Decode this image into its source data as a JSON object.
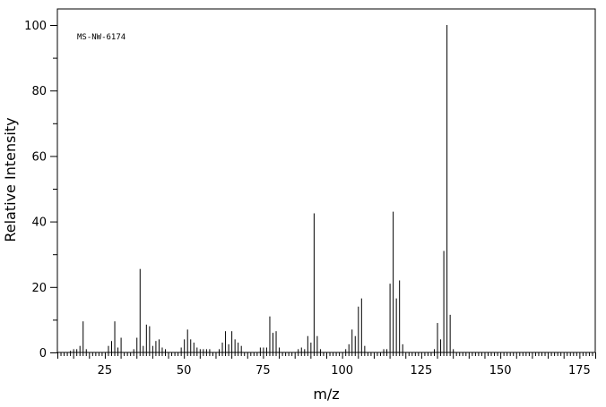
{
  "chart_data": {
    "type": "bar",
    "annotation": "MS-NW-6174",
    "xlabel": "m/z",
    "ylabel": "Relative Intensity",
    "xlim": [
      10,
      180
    ],
    "ylim": [
      0,
      100
    ],
    "x_ticks": [
      25,
      50,
      75,
      100,
      125,
      150,
      175
    ],
    "y_ticks": [
      0,
      20,
      40,
      60,
      80,
      100
    ],
    "x_minor_step": 1,
    "y_minor_step": 10,
    "grid": false,
    "bar_color": "#000000",
    "peaks": [
      {
        "x": 14,
        "y": 0.5
      },
      {
        "x": 15,
        "y": 1.0
      },
      {
        "x": 16,
        "y": 1.0
      },
      {
        "x": 17,
        "y": 2.0
      },
      {
        "x": 18,
        "y": 9.5
      },
      {
        "x": 19,
        "y": 1.0
      },
      {
        "x": 26,
        "y": 2.0
      },
      {
        "x": 27,
        "y": 3.5
      },
      {
        "x": 28,
        "y": 9.5
      },
      {
        "x": 29,
        "y": 1.5
      },
      {
        "x": 30,
        "y": 4.5
      },
      {
        "x": 34,
        "y": 1.0
      },
      {
        "x": 35,
        "y": 4.5
      },
      {
        "x": 36,
        "y": 25.5
      },
      {
        "x": 37,
        "y": 2.0
      },
      {
        "x": 38,
        "y": 8.5
      },
      {
        "x": 39,
        "y": 8.0
      },
      {
        "x": 40,
        "y": 2.0
      },
      {
        "x": 41,
        "y": 3.5
      },
      {
        "x": 42,
        "y": 4.0
      },
      {
        "x": 43,
        "y": 1.5
      },
      {
        "x": 44,
        "y": 1.0
      },
      {
        "x": 49,
        "y": 1.5
      },
      {
        "x": 50,
        "y": 4.0
      },
      {
        "x": 51,
        "y": 7.0
      },
      {
        "x": 52,
        "y": 4.0
      },
      {
        "x": 53,
        "y": 3.0
      },
      {
        "x": 54,
        "y": 1.5
      },
      {
        "x": 55,
        "y": 1.0
      },
      {
        "x": 56,
        "y": 1.0
      },
      {
        "x": 57,
        "y": 1.0
      },
      {
        "x": 58,
        "y": 1.0
      },
      {
        "x": 61,
        "y": 1.0
      },
      {
        "x": 62,
        "y": 3.0
      },
      {
        "x": 63,
        "y": 6.5
      },
      {
        "x": 64,
        "y": 2.5
      },
      {
        "x": 65,
        "y": 6.5
      },
      {
        "x": 66,
        "y": 4.0
      },
      {
        "x": 67,
        "y": 3.0
      },
      {
        "x": 68,
        "y": 2.0
      },
      {
        "x": 74,
        "y": 1.5
      },
      {
        "x": 75,
        "y": 1.5
      },
      {
        "x": 76,
        "y": 1.5
      },
      {
        "x": 77,
        "y": 11.0
      },
      {
        "x": 78,
        "y": 6.0
      },
      {
        "x": 79,
        "y": 6.5
      },
      {
        "x": 80,
        "y": 1.5
      },
      {
        "x": 86,
        "y": 1.0
      },
      {
        "x": 87,
        "y": 1.5
      },
      {
        "x": 88,
        "y": 1.0
      },
      {
        "x": 89,
        "y": 5.0
      },
      {
        "x": 90,
        "y": 3.0
      },
      {
        "x": 91,
        "y": 42.5
      },
      {
        "x": 92,
        "y": 5.0
      },
      {
        "x": 93,
        "y": 1.0
      },
      {
        "x": 101,
        "y": 1.0
      },
      {
        "x": 102,
        "y": 2.5
      },
      {
        "x": 103,
        "y": 7.0
      },
      {
        "x": 104,
        "y": 5.0
      },
      {
        "x": 105,
        "y": 14.0
      },
      {
        "x": 106,
        "y": 16.5
      },
      {
        "x": 107,
        "y": 2.0
      },
      {
        "x": 113,
        "y": 1.0
      },
      {
        "x": 114,
        "y": 1.0
      },
      {
        "x": 115,
        "y": 21.0
      },
      {
        "x": 116,
        "y": 43.0
      },
      {
        "x": 117,
        "y": 16.5
      },
      {
        "x": 118,
        "y": 22.0
      },
      {
        "x": 119,
        "y": 2.5
      },
      {
        "x": 129,
        "y": 1.0
      },
      {
        "x": 130,
        "y": 9.0
      },
      {
        "x": 131,
        "y": 4.0
      },
      {
        "x": 132,
        "y": 31.0
      },
      {
        "x": 133,
        "y": 100.0
      },
      {
        "x": 134,
        "y": 11.5
      },
      {
        "x": 135,
        "y": 1.0
      }
    ]
  }
}
